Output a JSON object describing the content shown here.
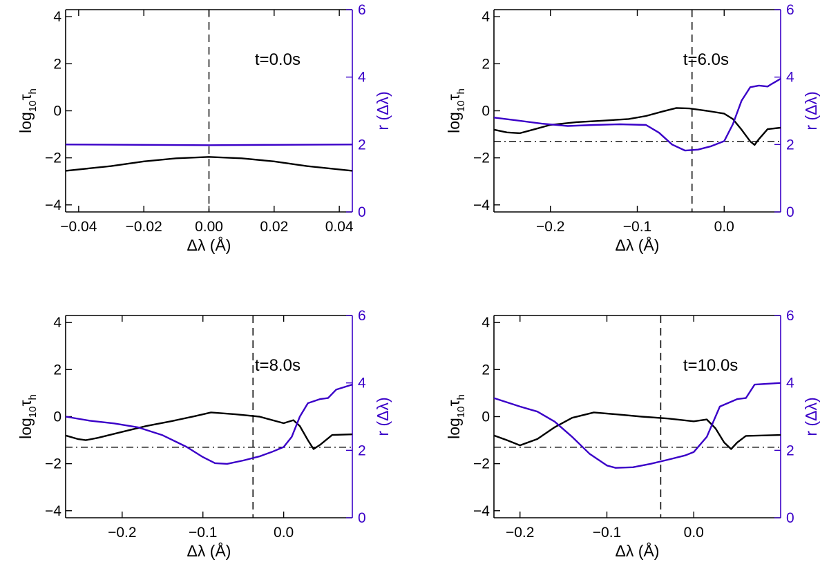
{
  "colors": {
    "left_axis": "#000000",
    "right_axis": "#3a00c8",
    "tau_curve": "#000000",
    "r_curve": "#3a00c8"
  },
  "chart_data": [
    {
      "type": "line",
      "annotation": "t=0.0s",
      "xlabel": "Δλ (Å)",
      "ylabel": "log10τh",
      "ylabel_main": "log",
      "ylabel_sub1": "10",
      "ylabel_mid": "τ",
      "ylabel_sub2": "h",
      "y2label": "r (Δλ)",
      "xlim": [
        -0.044,
        0.044
      ],
      "ylim": [
        -4.3,
        4.3
      ],
      "y2lim": [
        0,
        6
      ],
      "xticks": [
        -0.04,
        -0.02,
        0.0,
        0.02,
        0.04
      ],
      "xtick_labels": [
        "−0.04",
        "−0.02",
        "0.00",
        "0.02",
        "0.04"
      ],
      "yticks": [
        -4,
        -2,
        0,
        2,
        4
      ],
      "ytick_labels": [
        "−4",
        "−2",
        "0",
        "2",
        "4"
      ],
      "y2ticks": [
        0,
        2,
        4,
        6
      ],
      "y2tick_labels": [
        "0",
        "2",
        "4",
        "6"
      ],
      "vline_x": 0.0,
      "hline_y": null,
      "series": [
        {
          "name": "log10 tau_h",
          "axis": "left",
          "x": [
            -0.044,
            -0.03,
            -0.02,
            -0.01,
            0.0,
            0.01,
            0.02,
            0.03,
            0.044
          ],
          "values": [
            -2.55,
            -2.35,
            -2.15,
            -2.02,
            -1.96,
            -2.02,
            -2.15,
            -2.35,
            -2.55
          ]
        },
        {
          "name": "r",
          "axis": "right",
          "x": [
            -0.044,
            -0.02,
            0.0,
            0.02,
            0.044
          ],
          "values": [
            2.0,
            1.99,
            1.98,
            1.99,
            2.0
          ]
        }
      ]
    },
    {
      "type": "line",
      "annotation": "t=6.0s",
      "xlabel": "Δλ (Å)",
      "ylabel": "log10τh",
      "ylabel_main": "log",
      "ylabel_sub1": "10",
      "ylabel_mid": "τ",
      "ylabel_sub2": "h",
      "y2label": "r (Δλ)",
      "xlim": [
        -0.265,
        0.065
      ],
      "ylim": [
        -4.3,
        4.3
      ],
      "y2lim": [
        0,
        6
      ],
      "xticks": [
        -0.2,
        -0.1,
        0.0
      ],
      "xtick_labels": [
        "−0.2",
        "−0.1",
        "0.0"
      ],
      "yticks": [
        -4,
        -2,
        0,
        2,
        4
      ],
      "ytick_labels": [
        "−4",
        "−2",
        "0",
        "2",
        "4"
      ],
      "y2ticks": [
        0,
        2,
        4,
        6
      ],
      "y2tick_labels": [
        "0",
        "2",
        "4",
        "6"
      ],
      "vline_x": -0.037,
      "hline_y": -1.3,
      "series": [
        {
          "name": "log10 tau_h",
          "axis": "left",
          "x": [
            -0.265,
            -0.25,
            -0.235,
            -0.22,
            -0.2,
            -0.17,
            -0.14,
            -0.11,
            -0.09,
            -0.07,
            -0.055,
            -0.04,
            -0.02,
            0.0,
            0.01,
            0.02,
            0.03,
            0.035,
            0.04,
            0.05,
            0.065
          ],
          "values": [
            -0.8,
            -0.92,
            -0.95,
            -0.8,
            -0.6,
            -0.48,
            -0.42,
            -0.35,
            -0.22,
            -0.02,
            0.12,
            0.1,
            0.0,
            -0.12,
            -0.35,
            -0.8,
            -1.3,
            -1.45,
            -1.2,
            -0.78,
            -0.72
          ]
        },
        {
          "name": "r",
          "axis": "right",
          "x": [
            -0.265,
            -0.24,
            -0.21,
            -0.18,
            -0.15,
            -0.12,
            -0.09,
            -0.075,
            -0.06,
            -0.045,
            -0.03,
            -0.015,
            0.0,
            0.01,
            0.02,
            0.03,
            0.04,
            0.05,
            0.055,
            0.065
          ],
          "values": [
            2.8,
            2.72,
            2.62,
            2.55,
            2.58,
            2.6,
            2.58,
            2.35,
            2.0,
            1.82,
            1.85,
            1.95,
            2.1,
            2.6,
            3.3,
            3.7,
            3.75,
            3.72,
            3.8,
            3.95
          ]
        }
      ]
    },
    {
      "type": "line",
      "annotation": "t=8.0s",
      "xlabel": "Δλ (Å)",
      "ylabel": "log10τh",
      "ylabel_main": "log",
      "ylabel_sub1": "10",
      "ylabel_mid": "τ",
      "ylabel_sub2": "h",
      "y2label": "r (Δλ)",
      "xlim": [
        -0.27,
        0.085
      ],
      "ylim": [
        -4.3,
        4.3
      ],
      "y2lim": [
        0,
        6
      ],
      "xticks": [
        -0.2,
        -0.1,
        0.0
      ],
      "xtick_labels": [
        "−0.2",
        "−0.1",
        "0.0"
      ],
      "yticks": [
        -4,
        -2,
        0,
        2,
        4
      ],
      "ytick_labels": [
        "−4",
        "−2",
        "0",
        "2",
        "4"
      ],
      "y2ticks": [
        0,
        2,
        4,
        6
      ],
      "y2tick_labels": [
        "0",
        "2",
        "4",
        "6"
      ],
      "vline_x": -0.038,
      "hline_y": -1.3,
      "series": [
        {
          "name": "log10 tau_h",
          "axis": "left",
          "x": [
            -0.27,
            -0.255,
            -0.245,
            -0.23,
            -0.2,
            -0.17,
            -0.14,
            -0.11,
            -0.09,
            -0.06,
            -0.03,
            0.0,
            0.012,
            0.02,
            0.03,
            0.037,
            0.045,
            0.06,
            0.085
          ],
          "values": [
            -0.8,
            -0.95,
            -1.0,
            -0.9,
            -0.65,
            -0.4,
            -0.2,
            0.02,
            0.18,
            0.1,
            0.0,
            -0.28,
            -0.15,
            -0.4,
            -1.0,
            -1.38,
            -1.2,
            -0.78,
            -0.75
          ]
        },
        {
          "name": "r",
          "axis": "right",
          "x": [
            -0.27,
            -0.24,
            -0.21,
            -0.18,
            -0.15,
            -0.12,
            -0.1,
            -0.085,
            -0.07,
            -0.05,
            -0.03,
            -0.015,
            0.0,
            0.01,
            0.02,
            0.03,
            0.045,
            0.055,
            0.065,
            0.085
          ],
          "values": [
            3.0,
            2.88,
            2.8,
            2.68,
            2.45,
            2.1,
            1.8,
            1.62,
            1.6,
            1.7,
            1.82,
            1.95,
            2.1,
            2.4,
            3.0,
            3.4,
            3.52,
            3.55,
            3.8,
            3.95
          ]
        }
      ]
    },
    {
      "type": "line",
      "annotation": "t=10.0s",
      "xlabel": "Δλ (Å)",
      "ylabel": "log10τh",
      "ylabel_main": "log",
      "ylabel_sub1": "10",
      "ylabel_mid": "τ",
      "ylabel_sub2": "h",
      "y2label": "r (Δλ)",
      "xlim": [
        -0.23,
        0.1
      ],
      "ylim": [
        -4.3,
        4.3
      ],
      "y2lim": [
        0,
        6
      ],
      "xticks": [
        -0.2,
        -0.1,
        0.0
      ],
      "xtick_labels": [
        "−0.2",
        "−0.1",
        "0.0"
      ],
      "yticks": [
        -4,
        -2,
        0,
        2,
        4
      ],
      "ytick_labels": [
        "−4",
        "−2",
        "0",
        "2",
        "4"
      ],
      "y2ticks": [
        0,
        2,
        4,
        6
      ],
      "y2tick_labels": [
        "0",
        "2",
        "4",
        "6"
      ],
      "vline_x": -0.038,
      "hline_y": -1.3,
      "series": [
        {
          "name": "log10 tau_h",
          "axis": "left",
          "x": [
            -0.23,
            -0.215,
            -0.2,
            -0.18,
            -0.16,
            -0.14,
            -0.115,
            -0.09,
            -0.06,
            -0.03,
            0.0,
            0.015,
            0.025,
            0.035,
            0.043,
            0.05,
            0.06,
            0.1
          ],
          "values": [
            -0.8,
            -1.0,
            -1.22,
            -0.95,
            -0.45,
            -0.05,
            0.18,
            0.1,
            0.0,
            -0.08,
            -0.2,
            -0.12,
            -0.5,
            -1.1,
            -1.38,
            -1.1,
            -0.82,
            -0.78
          ]
        },
        {
          "name": "r",
          "axis": "right",
          "x": [
            -0.23,
            -0.2,
            -0.18,
            -0.16,
            -0.14,
            -0.12,
            -0.1,
            -0.09,
            -0.07,
            -0.05,
            -0.03,
            -0.01,
            0.0,
            0.015,
            0.03,
            0.05,
            0.06,
            0.07,
            0.1
          ],
          "values": [
            3.55,
            3.3,
            3.15,
            2.85,
            2.4,
            1.9,
            1.55,
            1.48,
            1.5,
            1.6,
            1.72,
            1.85,
            1.95,
            2.4,
            3.3,
            3.52,
            3.55,
            3.95,
            4.0
          ]
        }
      ]
    }
  ]
}
